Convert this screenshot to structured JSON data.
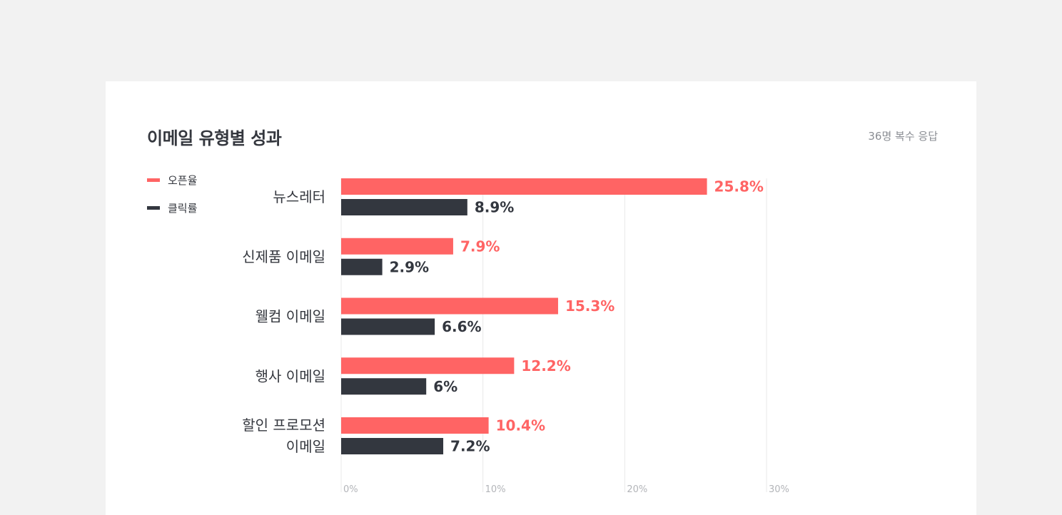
{
  "card": {
    "title": "이메일 유형별 성과",
    "note": "36명 복수 응답"
  },
  "colors": {
    "open": "#ff6464",
    "click": "#33373f",
    "grid": "#e8e8e8",
    "axis_label": "#b3b5b9",
    "category_label": "#34373e"
  },
  "chart_data": {
    "type": "bar",
    "orientation": "horizontal",
    "categories": [
      [
        "뉴스레터"
      ],
      [
        "신제품 이메일"
      ],
      [
        "웰컴 이메일"
      ],
      [
        "행사 이메일"
      ],
      [
        "할인 프로모션",
        "이메일"
      ]
    ],
    "series": [
      {
        "name": "오픈율",
        "values": [
          25.8,
          7.9,
          15.3,
          12.2,
          10.4
        ],
        "labels": [
          "25.8%",
          "7.9%",
          "15.3%",
          "12.2%",
          "10.4%"
        ]
      },
      {
        "name": "클릭률",
        "values": [
          8.9,
          2.9,
          6.6,
          6,
          7.2
        ],
        "labels": [
          "8.9%",
          "2.9%",
          "6.6%",
          "6%",
          "7.2%"
        ]
      }
    ],
    "xlim": [
      0,
      30
    ],
    "ticks": [
      0,
      10,
      20,
      30
    ],
    "tick_labels": [
      "0%",
      "10%",
      "20%",
      "30%"
    ],
    "grid": true,
    "legend_position": "top-left"
  }
}
